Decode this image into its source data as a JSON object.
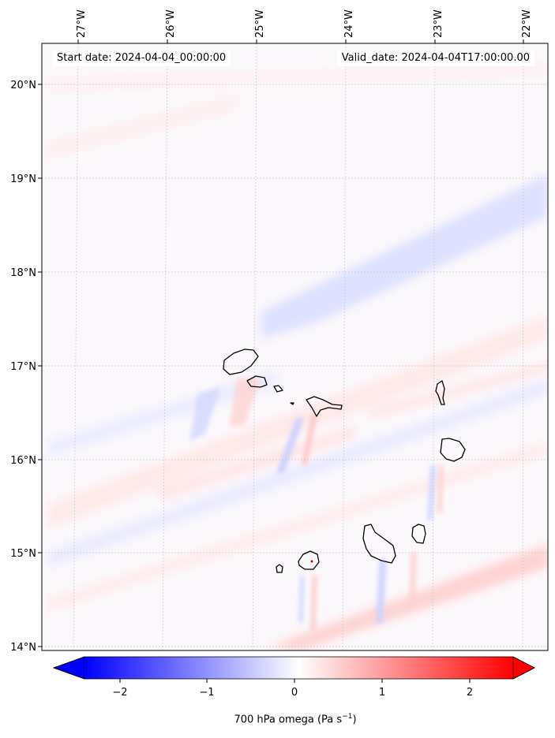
{
  "header": {
    "start_date": "Start date: 2024-04-04_00:00:00",
    "valid_date": "Valid_date: 2024-04-04T17:00:00.00"
  },
  "longitude_labels": [
    "27°W",
    "26°W",
    "25°W",
    "24°W",
    "23°W",
    "22°W"
  ],
  "latitude_labels": [
    "20°N",
    "19°N",
    "18°N",
    "17°N",
    "16°N",
    "15°N",
    "14°N"
  ],
  "colorbar": {
    "title_text": "700 hPa omega (Pa s",
    "title_exp": "−1",
    "title_end": ")",
    "tick_labels": [
      "−2",
      "−1",
      "0",
      "1",
      "2"
    ],
    "range": [
      -2.5,
      2.5
    ],
    "low_color": "#0000ff",
    "high_color": "#ff0000",
    "extend": "both"
  },
  "map": {
    "projection_extent_lon": [
      -27.5,
      -22.1
    ],
    "projection_extent_lat": [
      13.95,
      20.4
    ],
    "field_name": "700 hPa omega",
    "gridlines": true,
    "colormap": "bwr"
  }
}
